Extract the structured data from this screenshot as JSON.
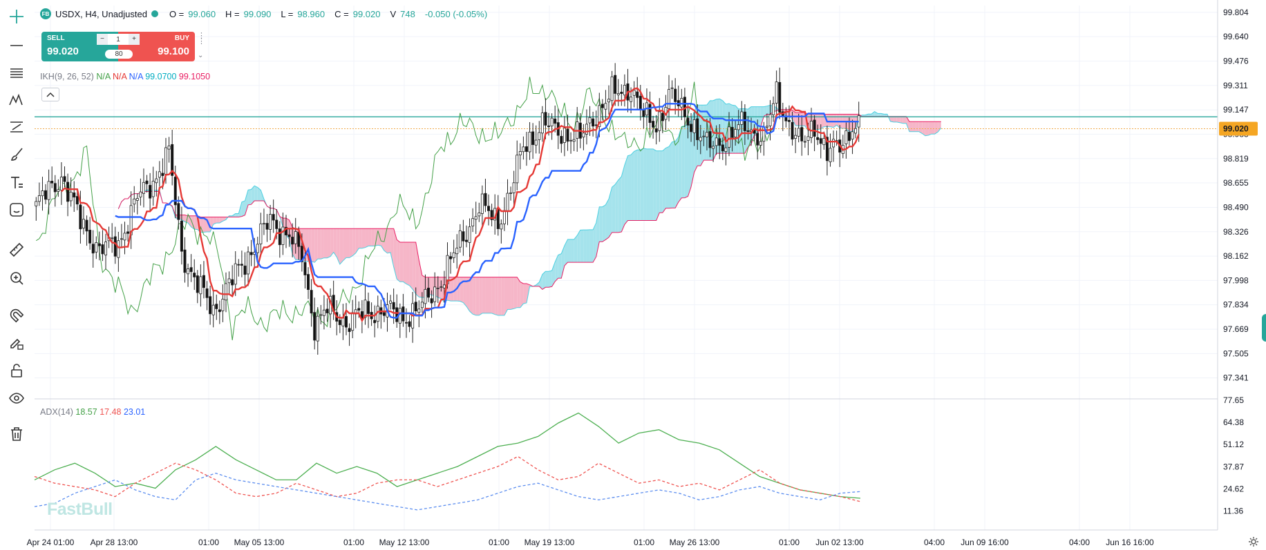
{
  "header": {
    "symbol_logo": "FB",
    "title": "USDX, H4, Unadjusted",
    "open_label": "O =",
    "open": "99.060",
    "high_label": "H =",
    "high": "99.090",
    "low_label": "L =",
    "low": "98.960",
    "close_label": "C =",
    "close": "99.020",
    "volume_label": "V",
    "volume": "748",
    "change": "-0.050 (-0.05%)"
  },
  "trade_panel": {
    "sell_label": "SELL",
    "sell_price": "99.020",
    "buy_label": "BUY",
    "buy_price": "99.100",
    "quantity": "1",
    "minus": "−",
    "plus": "+",
    "spread": "80"
  },
  "ikh_legend": {
    "name": "IKH(9, 26, 52)",
    "v1": "N/A",
    "v2": "N/A",
    "v3": "N/A",
    "v4": "99.0700",
    "v5": "99.1050"
  },
  "adx_legend": {
    "name": "ADX(14)",
    "v1": "18.57",
    "v2": "17.48",
    "v3": "23.01"
  },
  "price_axis": [
    "99.804",
    "99.640",
    "99.476",
    "99.311",
    "99.147",
    "98.983",
    "98.819",
    "98.655",
    "98.490",
    "98.326",
    "98.162",
    "97.998",
    "97.834",
    "97.669",
    "97.505",
    "97.341"
  ],
  "last_price_tag": "99.020",
  "adx_axis": [
    "77.65",
    "64.38",
    "51.12",
    "37.87",
    "24.62",
    "11.36"
  ],
  "time_axis": [
    "Apr 24 01:00",
    "Apr 28 13:00",
    "01:00",
    "May 05 13:00",
    "01:00",
    "May 12 13:00",
    "01:00",
    "May 19 13:00",
    "01:00",
    "May 26 13:00",
    "01:00",
    "Jun 02 13:00",
    "04:00",
    "Jun 09 16:00",
    "04:00",
    "Jun 16 16:00"
  ],
  "watermark": "FastBull",
  "colors": {
    "up": "#26a69a",
    "down": "#ef5350",
    "tenkan": "#e53935",
    "kijun": "#2962ff",
    "chikou": "#43a047",
    "cloud_bull": "#a5e3ec",
    "cloud_bear": "#f6b6c8",
    "adx": "#4caf50",
    "di_plus": "#ef5350",
    "di_minus": "#5b8def"
  },
  "toolbar_icons": [
    "crosshair-icon",
    "trend-line-icon",
    "horizontal-lines-icon",
    "pattern-icon",
    "fib-icon",
    "brush-icon",
    "text-icon",
    "emoji-icon",
    "ruler-icon",
    "zoom-in-icon",
    "magnet-icon",
    "lock-drawing-icon",
    "unlock-icon",
    "eye-icon",
    "trash-icon"
  ],
  "chart_data": [
    {
      "type": "candlestick",
      "symbol": "USDX",
      "interval": "H4",
      "ylim": [
        97.2,
        99.85
      ],
      "x": "bar index (4h bars), Apr 24 01:00 – Jun 02 17:00",
      "last_close": 99.02,
      "candles": [],
      "indicators": [
        "Ichimoku (9,26,52)"
      ]
    },
    {
      "type": "line",
      "title": "ADX(14)",
      "ylim": [
        0,
        77.65
      ],
      "series": [
        {
          "name": "ADX",
          "values": [
            30,
            36,
            40,
            34,
            26,
            28,
            25,
            36,
            42,
            50,
            42,
            36,
            30,
            30,
            40,
            34,
            38,
            34,
            26,
            30,
            34,
            38,
            44,
            50,
            52,
            56,
            64,
            70,
            62,
            52,
            58,
            60,
            54,
            52,
            48,
            40,
            32,
            28,
            24,
            22,
            20,
            19
          ]
        },
        {
          "name": "+DI",
          "values": [
            32,
            28,
            26,
            24,
            20,
            28,
            34,
            40,
            36,
            30,
            22,
            20,
            22,
            28,
            24,
            20,
            22,
            28,
            30,
            30,
            26,
            30,
            34,
            38,
            44,
            36,
            30,
            32,
            40,
            34,
            28,
            30,
            26,
            28,
            24,
            30,
            36,
            28,
            24,
            22,
            20,
            17
          ]
        },
        {
          "name": "-DI",
          "values": [
            14,
            16,
            22,
            26,
            30,
            24,
            20,
            18,
            30,
            34,
            30,
            28,
            26,
            24,
            22,
            20,
            18,
            16,
            14,
            12,
            14,
            16,
            18,
            22,
            26,
            28,
            24,
            20,
            18,
            20,
            22,
            24,
            22,
            18,
            20,
            24,
            26,
            22,
            20,
            18,
            22,
            23
          ]
        }
      ]
    }
  ]
}
